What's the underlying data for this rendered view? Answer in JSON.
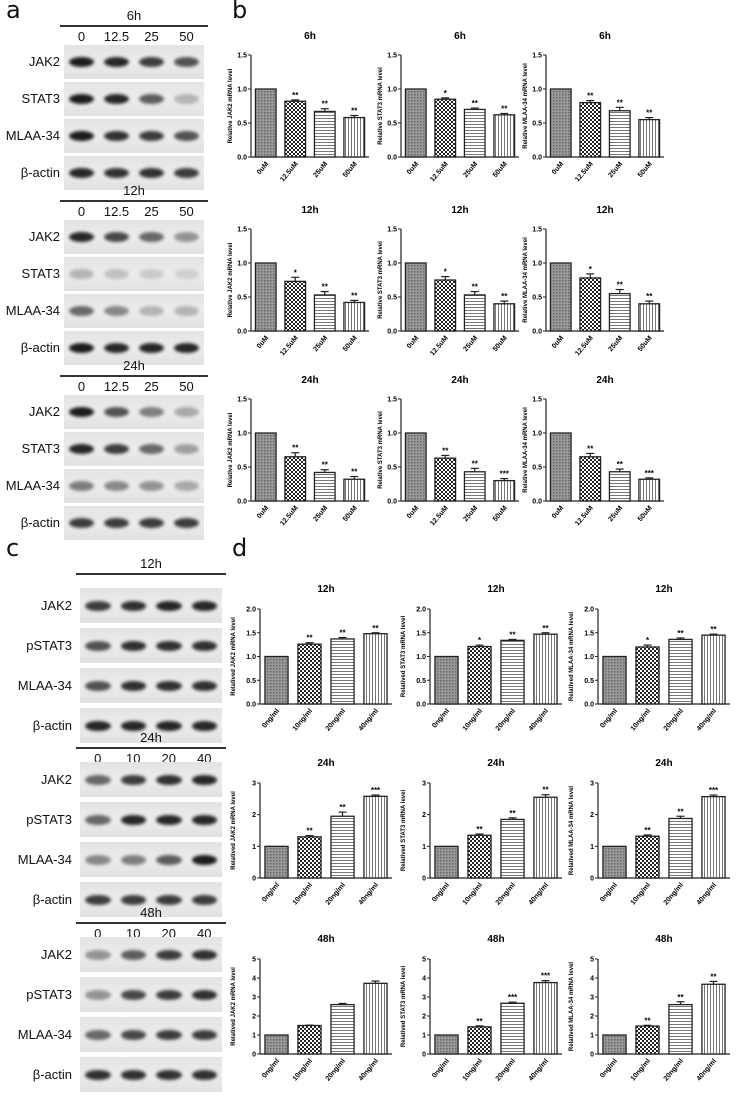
{
  "panels": {
    "a": "a",
    "b": "b",
    "c": "c",
    "d": "d"
  },
  "blots_a": {
    "lanes": [
      "0",
      "12.5",
      "25",
      "50"
    ],
    "rows": [
      "JAK2",
      "STAT3",
      "MLAA-34",
      "β-actin"
    ],
    "blocks": [
      {
        "time": "6h",
        "show_lanes": true,
        "intensity": [
          [
            0.95,
            0.9,
            0.8,
            0.7
          ],
          [
            0.95,
            0.9,
            0.65,
            0.25
          ],
          [
            0.95,
            0.85,
            0.8,
            0.7
          ],
          [
            0.9,
            0.85,
            0.85,
            0.8
          ]
        ]
      },
      {
        "time": "12h",
        "show_lanes": true,
        "intensity": [
          [
            0.9,
            0.75,
            0.6,
            0.4
          ],
          [
            0.25,
            0.2,
            0.15,
            0.12
          ],
          [
            0.6,
            0.45,
            0.25,
            0.25
          ],
          [
            0.95,
            0.9,
            0.9,
            0.9
          ]
        ]
      },
      {
        "time": "24h",
        "show_lanes": true,
        "intensity": [
          [
            0.95,
            0.7,
            0.5,
            0.3
          ],
          [
            0.9,
            0.8,
            0.6,
            0.35
          ],
          [
            0.5,
            0.45,
            0.4,
            0.3
          ],
          [
            0.8,
            0.8,
            0.8,
            0.8
          ]
        ]
      }
    ]
  },
  "blots_c": {
    "lanes": [
      "0",
      "10",
      "20",
      "40"
    ],
    "rows": [
      "JAK2",
      "pSTAT3",
      "MLAA-34",
      "β-actin"
    ],
    "blocks": [
      {
        "time": "12h",
        "show_lanes": false,
        "intensity": [
          [
            0.8,
            0.85,
            0.9,
            0.9
          ],
          [
            0.7,
            0.85,
            0.85,
            0.85
          ],
          [
            0.7,
            0.85,
            0.85,
            0.85
          ],
          [
            0.9,
            0.9,
            0.9,
            0.9
          ]
        ]
      },
      {
        "time": "24h",
        "show_lanes": true,
        "intensity": [
          [
            0.6,
            0.8,
            0.85,
            0.9
          ],
          [
            0.6,
            0.9,
            0.9,
            0.9
          ],
          [
            0.45,
            0.5,
            0.65,
            0.95
          ],
          [
            0.8,
            0.8,
            0.8,
            0.8
          ]
        ]
      },
      {
        "time": "48h",
        "show_lanes": true,
        "intensity": [
          [
            0.4,
            0.65,
            0.8,
            0.85
          ],
          [
            0.4,
            0.75,
            0.8,
            0.85
          ],
          [
            0.6,
            0.75,
            0.8,
            0.8
          ],
          [
            0.85,
            0.85,
            0.85,
            0.85
          ]
        ]
      }
    ]
  },
  "chart_data": [
    {
      "panel": "b",
      "type": "bar",
      "title": "6h",
      "ylabel": "Relative JAK2 mRNA level",
      "categories": [
        "0uM",
        "12.5uM",
        "25uM",
        "50uM"
      ],
      "values": [
        1.0,
        0.82,
        0.67,
        0.58
      ],
      "errors": [
        0,
        0.02,
        0.04,
        0.03
      ],
      "significance": [
        "",
        "**",
        "**",
        "**"
      ],
      "ylim": [
        0,
        1.5
      ],
      "yticks": [
        "0.0",
        "0.5",
        "1.0",
        "1.5"
      ]
    },
    {
      "panel": "b",
      "type": "bar",
      "title": "6h",
      "ylabel": "Relative STAT3 mRNA level",
      "categories": [
        "0uM",
        "12.5uM",
        "25uM",
        "50uM"
      ],
      "values": [
        1.0,
        0.85,
        0.7,
        0.62
      ],
      "errors": [
        0,
        0.02,
        0.02,
        0.02
      ],
      "significance": [
        "",
        "*",
        "**",
        "**"
      ],
      "ylim": [
        0,
        1.5
      ],
      "yticks": [
        "0.0",
        "0.5",
        "1.0",
        "1.5"
      ]
    },
    {
      "panel": "b",
      "type": "bar",
      "title": "6h",
      "ylabel": "Relative MLAA-34 mRNA level",
      "categories": [
        "0uM",
        "12.5uM",
        "25uM",
        "50uM"
      ],
      "values": [
        1.0,
        0.8,
        0.68,
        0.55
      ],
      "errors": [
        0,
        0.03,
        0.05,
        0.03
      ],
      "significance": [
        "",
        "**",
        "**",
        "**"
      ],
      "ylim": [
        0,
        1.5
      ],
      "yticks": [
        "0.0",
        "0.5",
        "1.0",
        "1.5"
      ]
    },
    {
      "panel": "b",
      "type": "bar",
      "title": "12h",
      "ylabel": "Relative JAK2 mRNA level",
      "categories": [
        "0uM",
        "12.5uM",
        "25uM",
        "50uM"
      ],
      "values": [
        1.0,
        0.73,
        0.53,
        0.42
      ],
      "errors": [
        0,
        0.06,
        0.05,
        0.03
      ],
      "significance": [
        "",
        "*",
        "**",
        "**"
      ],
      "ylim": [
        0,
        1.5
      ],
      "yticks": [
        "0.0",
        "0.5",
        "1.0",
        "1.5"
      ]
    },
    {
      "panel": "b",
      "type": "bar",
      "title": "12h",
      "ylabel": "Relative STAT3 mRNA level",
      "categories": [
        "0uM",
        "12.5uM",
        "25uM",
        "50uM"
      ],
      "values": [
        1.0,
        0.75,
        0.53,
        0.4
      ],
      "errors": [
        0,
        0.05,
        0.05,
        0.04
      ],
      "significance": [
        "",
        "*",
        "**",
        "**"
      ],
      "ylim": [
        0,
        1.5
      ],
      "yticks": [
        "0.0",
        "0.5",
        "1.0",
        "1.5"
      ]
    },
    {
      "panel": "b",
      "type": "bar",
      "title": "12h",
      "ylabel": "Relative MLAA-34 mRNA level",
      "categories": [
        "0uM",
        "12.5uM",
        "25uM",
        "50uM"
      ],
      "values": [
        1.0,
        0.78,
        0.55,
        0.4
      ],
      "errors": [
        0,
        0.06,
        0.06,
        0.04
      ],
      "significance": [
        "",
        "*",
        "**",
        "**"
      ],
      "ylim": [
        0,
        1.5
      ],
      "yticks": [
        "0.0",
        "0.5",
        "1.0",
        "1.5"
      ]
    },
    {
      "panel": "b",
      "type": "bar",
      "title": "24h",
      "ylabel": "Relative JAK2 mRNA level",
      "categories": [
        "0uM",
        "12.5uM",
        "25uM",
        "50uM"
      ],
      "values": [
        1.0,
        0.65,
        0.42,
        0.32
      ],
      "errors": [
        0,
        0.06,
        0.04,
        0.04
      ],
      "significance": [
        "",
        "**",
        "**",
        "**"
      ],
      "ylim": [
        0,
        1.5
      ],
      "yticks": [
        "0.0",
        "0.5",
        "1.0",
        "1.5"
      ]
    },
    {
      "panel": "b",
      "type": "bar",
      "title": "24h",
      "ylabel": "Relative STAT3 mRNA level",
      "categories": [
        "0uM",
        "12.5uM",
        "25uM",
        "50uM"
      ],
      "values": [
        1.0,
        0.63,
        0.43,
        0.3
      ],
      "errors": [
        0,
        0.04,
        0.05,
        0.03
      ],
      "significance": [
        "",
        "**",
        "**",
        "***"
      ],
      "ylim": [
        0,
        1.5
      ],
      "yticks": [
        "0.0",
        "0.5",
        "1.0",
        "1.5"
      ]
    },
    {
      "panel": "b",
      "type": "bar",
      "title": "24h",
      "ylabel": "Relative MLAA-34 mRNA level",
      "categories": [
        "0uM",
        "12.5uM",
        "25uM",
        "50uM"
      ],
      "values": [
        1.0,
        0.65,
        0.43,
        0.32
      ],
      "errors": [
        0,
        0.05,
        0.04,
        0.02
      ],
      "significance": [
        "",
        "**",
        "**",
        "***"
      ],
      "ylim": [
        0,
        1.5
      ],
      "yticks": [
        "0.0",
        "0.5",
        "1.0",
        "1.5"
      ]
    },
    {
      "panel": "d",
      "type": "bar",
      "title": "12h",
      "ylabel": "Relatived JAK2 mRNA level",
      "categories": [
        "0ng/ml",
        "10ng/ml",
        "20ng/ml",
        "40ng/ml"
      ],
      "values": [
        1.0,
        1.26,
        1.37,
        1.48
      ],
      "errors": [
        0,
        0.03,
        0.03,
        0.02
      ],
      "significance": [
        "",
        "**",
        "**",
        "**"
      ],
      "ylim": [
        0,
        2
      ],
      "yticks": [
        "0.0",
        "0.5",
        "1.0",
        "1.5",
        "2.0"
      ]
    },
    {
      "panel": "d",
      "type": "bar",
      "title": "12h",
      "ylabel": "Relatived STAT3 mRNA level",
      "categories": [
        "0ng/ml",
        "10ng/ml",
        "20ng/ml",
        "40ng/ml"
      ],
      "values": [
        1.0,
        1.21,
        1.34,
        1.47
      ],
      "errors": [
        0,
        0.03,
        0.02,
        0.03
      ],
      "significance": [
        "",
        "*",
        "**",
        "**"
      ],
      "ylim": [
        0,
        2
      ],
      "yticks": [
        "0.0",
        "0.5",
        "1.0",
        "1.5",
        "2.0"
      ]
    },
    {
      "panel": "d",
      "type": "bar",
      "title": "12h",
      "ylabel": "Relatived MLAA-34 mRNA level",
      "categories": [
        "0ng/ml",
        "10ng/ml",
        "20ng/ml",
        "40ng/ml"
      ],
      "values": [
        1.0,
        1.2,
        1.36,
        1.45
      ],
      "errors": [
        0,
        0.04,
        0.03,
        0.02
      ],
      "significance": [
        "",
        "*",
        "**",
        "**"
      ],
      "ylim": [
        0,
        2
      ],
      "yticks": [
        "0.0",
        "0.5",
        "1.0",
        "1.5",
        "2.0"
      ]
    },
    {
      "panel": "d",
      "type": "bar",
      "title": "24h",
      "ylabel": "Relatived JAK2 mRNA level",
      "categories": [
        "0ng/ml",
        "10ng/ml",
        "20ng/ml",
        "40ng/ml"
      ],
      "values": [
        1.0,
        1.3,
        1.95,
        2.58
      ],
      "errors": [
        0,
        0.04,
        0.13,
        0.04
      ],
      "significance": [
        "",
        "**",
        "**",
        "***"
      ],
      "ylim": [
        0,
        3
      ],
      "yticks": [
        "0",
        "1",
        "2",
        "3"
      ]
    },
    {
      "panel": "d",
      "type": "bar",
      "title": "24h",
      "ylabel": "Relatived STAT3 mRNA level",
      "categories": [
        "0ng/ml",
        "10ng/ml",
        "20ng/ml",
        "40ng/ml"
      ],
      "values": [
        1.0,
        1.35,
        1.85,
        2.55
      ],
      "errors": [
        0,
        0.04,
        0.05,
        0.08
      ],
      "significance": [
        "",
        "**",
        "**",
        "**"
      ],
      "ylim": [
        0,
        3
      ],
      "yticks": [
        "0",
        "1",
        "2",
        "3"
      ]
    },
    {
      "panel": "d",
      "type": "bar",
      "title": "24h",
      "ylabel": "Relatived MLAA-34 mRNA level",
      "categories": [
        "0ng/ml",
        "10ng/ml",
        "20ng/ml",
        "40ng/ml"
      ],
      "values": [
        1.0,
        1.32,
        1.88,
        2.57
      ],
      "errors": [
        0,
        0.04,
        0.07,
        0.05
      ],
      "significance": [
        "",
        "**",
        "**",
        "***"
      ],
      "ylim": [
        0,
        3
      ],
      "yticks": [
        "0",
        "1",
        "2",
        "3"
      ]
    },
    {
      "panel": "d",
      "type": "bar",
      "title": "48h",
      "ylabel": "Relatived JAK2 mRNA level",
      "categories": [
        "0ng/ml",
        "10ng/ml",
        "20ng/ml",
        "40ng/ml"
      ],
      "values": [
        1.0,
        1.5,
        2.6,
        3.72
      ],
      "errors": [
        0,
        0.02,
        0.06,
        0.12
      ],
      "significance": [
        "",
        "",
        "",
        ""
      ],
      "ylim": [
        0,
        5
      ],
      "yticks": [
        "0",
        "1",
        "2",
        "3",
        "4",
        "5"
      ]
    },
    {
      "panel": "d",
      "type": "bar",
      "title": "48h",
      "ylabel": "Relatived STAT3 mRNA level",
      "categories": [
        "0ng/ml",
        "10ng/ml",
        "20ng/ml",
        "40ng/ml"
      ],
      "values": [
        1.0,
        1.43,
        2.67,
        3.76
      ],
      "errors": [
        0,
        0.05,
        0.06,
        0.1
      ],
      "significance": [
        "",
        "**",
        "***",
        "***"
      ],
      "ylim": [
        0,
        5
      ],
      "yticks": [
        "0",
        "1",
        "2",
        "3",
        "4",
        "5"
      ]
    },
    {
      "panel": "d",
      "type": "bar",
      "title": "48h",
      "ylabel": "Relatived MLAA-34 mRNA level",
      "categories": [
        "0ng/ml",
        "10ng/ml",
        "20ng/ml",
        "40ng/ml"
      ],
      "values": [
        1.0,
        1.47,
        2.6,
        3.67
      ],
      "errors": [
        0,
        0.04,
        0.15,
        0.15
      ],
      "significance": [
        "",
        "**",
        "**",
        "**"
      ],
      "ylim": [
        0,
        5
      ],
      "yticks": [
        "0",
        "1",
        "2",
        "3",
        "4",
        "5"
      ]
    }
  ]
}
